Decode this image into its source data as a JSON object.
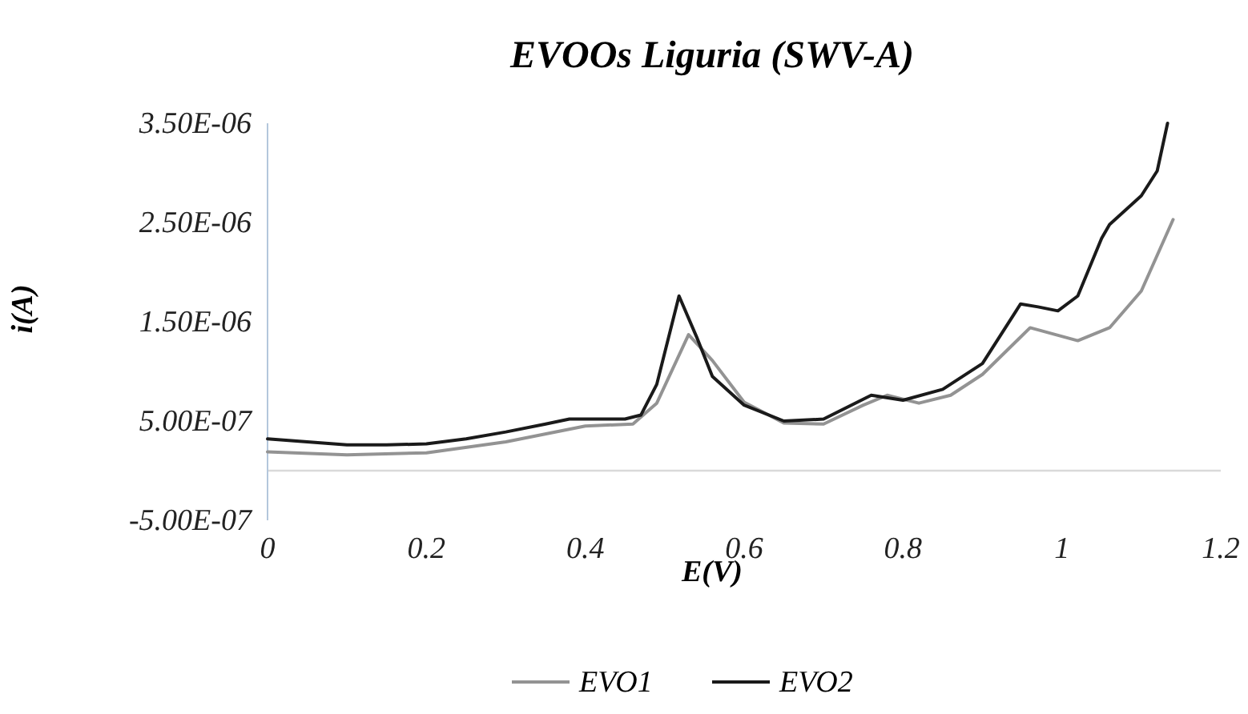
{
  "chart_data": {
    "type": "line",
    "title": "EVOOs Liguria (SWV-A)",
    "xlabel": "E(V)",
    "ylabel": "i(A)",
    "xlim": [
      0,
      1.2
    ],
    "xticks": [
      0,
      0.2,
      0.4,
      0.6,
      0.8,
      1,
      1.2
    ],
    "ylim": [
      -5e-07,
      3.5e-06
    ],
    "yticks": [
      {
        "value": -5e-07,
        "label": "-5.00E-07"
      },
      {
        "value": 5e-07,
        "label": "5.00E-07"
      },
      {
        "value": 1.5e-06,
        "label": "1.50E-06"
      },
      {
        "value": 2.5e-06,
        "label": "2.50E-06"
      },
      {
        "value": 3.5e-06,
        "label": "3.50E-06"
      }
    ],
    "grid": false,
    "legend": "bottom",
    "marker": "none",
    "line_style": "solid",
    "series": [
      {
        "name": "EVO1",
        "color": "#939393",
        "x": [
          0,
          0.1,
          0.2,
          0.3,
          0.4,
          0.46,
          0.49,
          0.53,
          0.56,
          0.6,
          0.65,
          0.7,
          0.75,
          0.78,
          0.82,
          0.86,
          0.9,
          0.96,
          1.02,
          1.06,
          1.1,
          1.14
        ],
        "values": [
          1.9e-07,
          1.6e-07,
          1.8e-07,
          2.9e-07,
          4.5e-07,
          4.7e-07,
          6.8e-07,
          1.37e-06,
          1.11e-06,
          6.9e-07,
          4.8e-07,
          4.7e-07,
          6.6e-07,
          7.6e-07,
          6.8e-07,
          7.6e-07,
          9.7e-07,
          1.44e-06,
          1.31e-06,
          1.44e-06,
          1.81e-06,
          2.53e-06
        ]
      },
      {
        "name": "EVO2",
        "color": "#1a1a1a",
        "x": [
          0,
          0.05,
          0.1,
          0.15,
          0.2,
          0.25,
          0.3,
          0.35,
          0.38,
          0.4,
          0.45,
          0.47,
          0.49,
          0.518,
          0.54,
          0.56,
          0.6,
          0.65,
          0.7,
          0.76,
          0.8,
          0.85,
          0.9,
          0.948,
          0.97,
          0.995,
          1.02,
          1.05,
          1.06,
          1.1,
          1.12,
          1.133
        ],
        "values": [
          3.2e-07,
          2.9e-07,
          2.6e-07,
          2.6e-07,
          2.7e-07,
          3.2e-07,
          3.9e-07,
          4.7e-07,
          5.2e-07,
          5.2e-07,
          5.2e-07,
          5.6e-07,
          8.7e-07,
          1.76e-06,
          1.35e-06,
          9.5e-07,
          6.6e-07,
          5e-07,
          5.2e-07,
          7.6e-07,
          7.1e-07,
          8.2e-07,
          1.08e-06,
          1.68e-06,
          1.65e-06,
          1.61e-06,
          1.76e-06,
          2.34e-06,
          2.48e-06,
          2.77e-06,
          3.02e-06,
          3.5e-06
        ]
      }
    ]
  }
}
